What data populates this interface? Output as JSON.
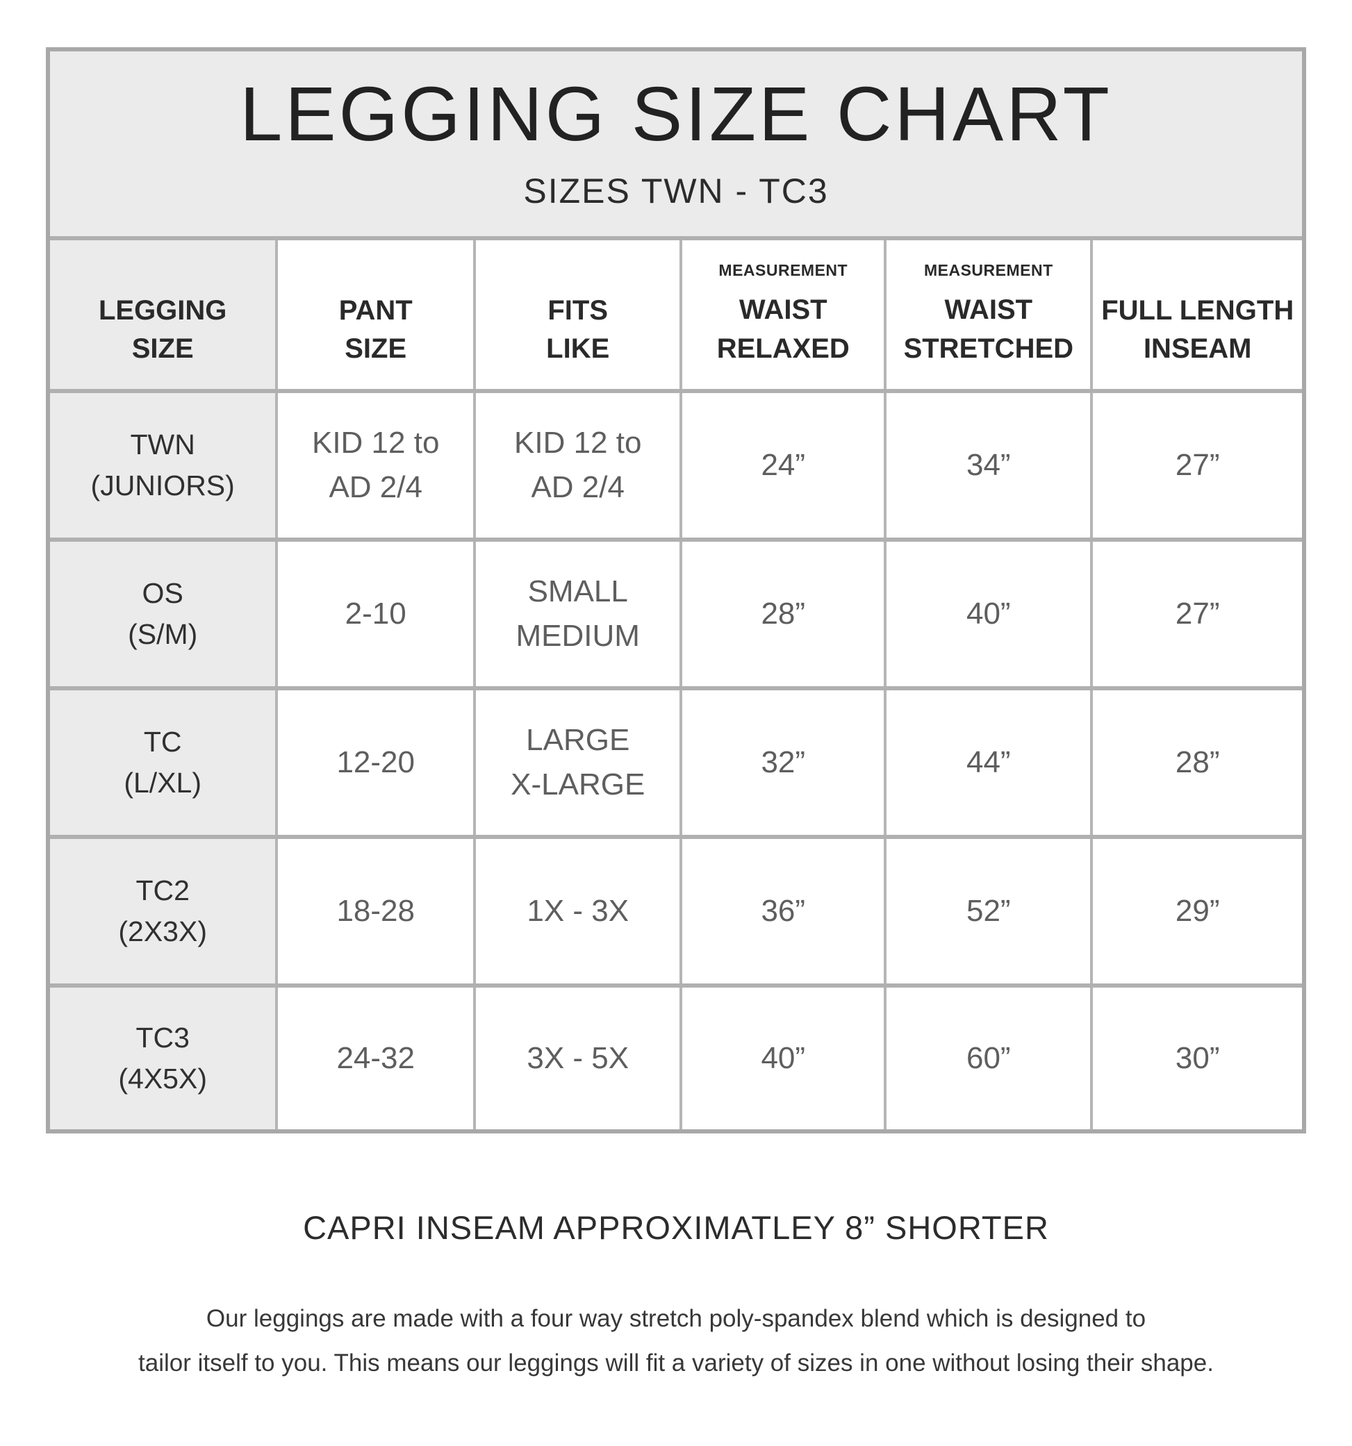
{
  "header": {
    "title": "LEGGING SIZE CHART",
    "subtitle": "SIZES TWN - TC3"
  },
  "table": {
    "columns": [
      {
        "label": "LEGGING\nSIZE"
      },
      {
        "label": "PANT\nSIZE"
      },
      {
        "label": "FITS\nLIKE"
      },
      {
        "sub_label": "MEASUREMENT",
        "label": "WAIST\nRELAXED"
      },
      {
        "sub_label": "MEASUREMENT",
        "label": "WAIST\nSTRETCHED"
      },
      {
        "label": "FULL LENGTH\nINSEAM"
      }
    ],
    "rows": [
      {
        "legging_size": "TWN\n(JUNIORS)",
        "pant_size": "KID 12 to\nAD 2/4",
        "fits_like": "KID 12 to\nAD 2/4",
        "waist_relaxed": "24”",
        "waist_stretched": "34”",
        "full_length_inseam": "27”"
      },
      {
        "legging_size": "OS\n(S/M)",
        "pant_size": "2-10",
        "fits_like": "SMALL\nMEDIUM",
        "waist_relaxed": "28”",
        "waist_stretched": "40”",
        "full_length_inseam": "27”"
      },
      {
        "legging_size": "TC\n(L/XL)",
        "pant_size": "12-20",
        "fits_like": "LARGE\nX-LARGE",
        "waist_relaxed": "32”",
        "waist_stretched": "44”",
        "full_length_inseam": "28”"
      },
      {
        "legging_size": "TC2\n(2X3X)",
        "pant_size": "18-28",
        "fits_like": "1X - 3X",
        "waist_relaxed": "36”",
        "waist_stretched": "52”",
        "full_length_inseam": "29”"
      },
      {
        "legging_size": "TC3\n(4X5X)",
        "pant_size": "24-32",
        "fits_like": "3X - 5X",
        "waist_relaxed": "40”",
        "waist_stretched": "60”",
        "full_length_inseam": "30”"
      }
    ]
  },
  "footer": {
    "note": "CAPRI INSEAM APPROXIMATLEY 8” SHORTER",
    "description": "Our leggings are made with a four way stretch poly-spandex blend which is designed to\ntailor itself to you. This means our leggings will fit a variety of sizes in one without losing their shape."
  },
  "colors": {
    "card_border": "#a8a8a8",
    "grid_line": "#b0b0b0",
    "shaded_cell_bg": "#ebebeb",
    "header_text": "#2a2a2a",
    "value_text": "#5e5e5e",
    "page_bg": "#ffffff"
  }
}
